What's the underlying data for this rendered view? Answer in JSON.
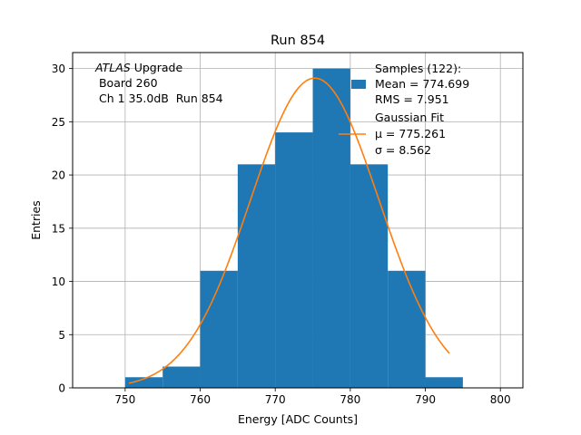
{
  "chart_data": {
    "type": "bar",
    "title": "Run 854",
    "xlabel": "Energy [ADC Counts]",
    "ylabel": "Entries",
    "xlim": [
      743,
      803
    ],
    "ylim": [
      0,
      31.5
    ],
    "xticks": [
      750,
      760,
      770,
      780,
      790,
      800
    ],
    "yticks": [
      0,
      5,
      10,
      15,
      20,
      25,
      30
    ],
    "grid": true,
    "bin_edges": [
      750,
      755,
      760,
      765,
      770,
      775,
      780,
      785,
      790,
      795
    ],
    "values": [
      1,
      2,
      11,
      21,
      24,
      30,
      21,
      11,
      1
    ],
    "fit": {
      "mu": 775.261,
      "sigma": 8.562,
      "amplitude": 29.1,
      "x_range": [
        750.5,
        793.2
      ]
    },
    "annotation": {
      "italic": "ATLAS",
      "line1_rest": " Upgrade",
      "line2": " Board 260",
      "line3": " Ch 1 35.0dB  Run 854"
    },
    "legend": {
      "position": "top-right",
      "samples": [
        "Samples (122):",
        "Mean = 774.699",
        "RMS = 7.951"
      ],
      "fit": [
        "Gaussian Fit",
        "μ = 775.261",
        "σ = 8.562"
      ]
    },
    "colors": {
      "bars": "#1f77b4",
      "fit": "#ff7f0e",
      "grid": "#b0b0b0"
    }
  }
}
